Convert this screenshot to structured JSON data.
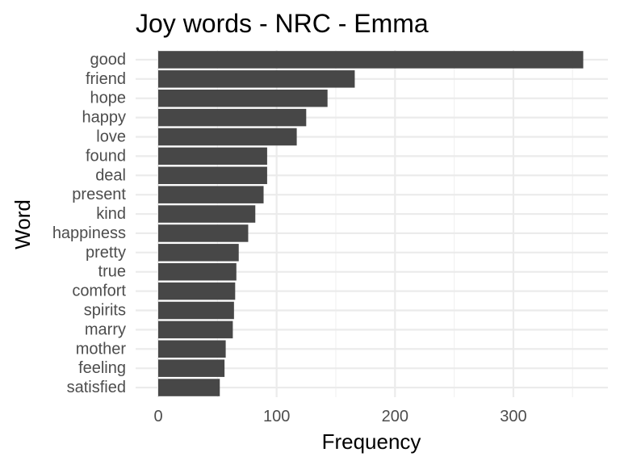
{
  "chart_data": {
    "type": "bar",
    "orientation": "horizontal",
    "title": "Joy words - NRC - Emma",
    "xlabel": "Frequency",
    "ylabel": "Word",
    "categories": [
      "good",
      "friend",
      "hope",
      "happy",
      "love",
      "found",
      "deal",
      "present",
      "kind",
      "happiness",
      "pretty",
      "true",
      "comfort",
      "spirits",
      "marry",
      "mother",
      "feeling",
      "satisfied"
    ],
    "values": [
      359,
      166,
      143,
      125,
      117,
      92,
      92,
      89,
      82,
      76,
      68,
      66,
      65,
      64,
      63,
      57,
      56,
      52
    ],
    "xlim": [
      0,
      377
    ],
    "xticks": [
      0,
      100,
      200,
      300
    ],
    "xtick_labels": [
      "0",
      "100",
      "200",
      "300"
    ],
    "grid": true,
    "bar_color": "#474747"
  }
}
